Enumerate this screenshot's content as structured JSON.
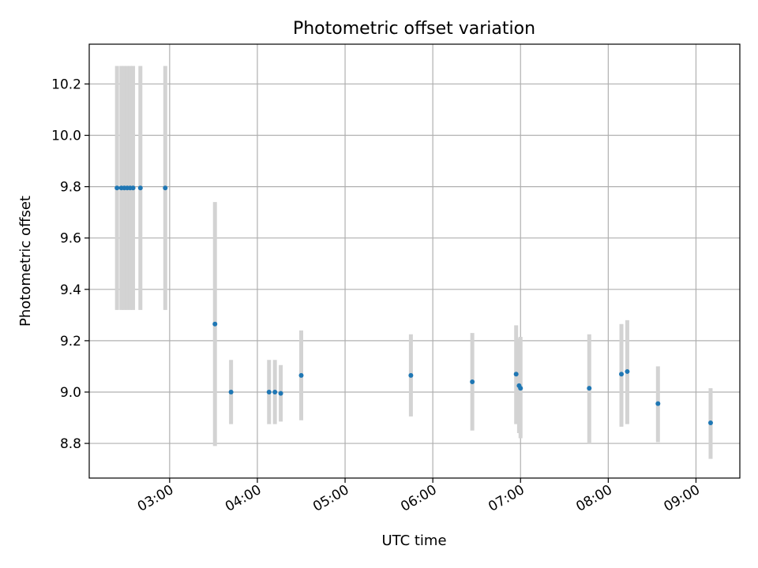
{
  "chart_data": {
    "type": "scatter",
    "title": "Photometric offset variation",
    "xlabel": "UTC time",
    "ylabel": "Photometric offset",
    "xlim": [
      "02:05",
      "09:30"
    ],
    "ylim": [
      8.665,
      10.355
    ],
    "grid": true,
    "x_tick_labels": [
      "03:00",
      "04:00",
      "05:00",
      "06:00",
      "07:00",
      "08:00",
      "09:00"
    ],
    "y_tick_labels": [
      "8.8",
      "9.0",
      "9.2",
      "9.4",
      "9.6",
      "9.8",
      "10.0",
      "10.2"
    ],
    "series": [
      {
        "color": "#1f77b4",
        "error_color": "#d3d3d3",
        "points": [
          {
            "x": "02:24",
            "y": 9.795,
            "ylow": 9.32,
            "yhigh": 10.27
          },
          {
            "x": "02:27",
            "y": 9.795,
            "ylow": 9.32,
            "yhigh": 10.27
          },
          {
            "x": "02:29",
            "y": 9.795,
            "ylow": 9.32,
            "yhigh": 10.27
          },
          {
            "x": "02:31",
            "y": 9.795,
            "ylow": 9.32,
            "yhigh": 10.27
          },
          {
            "x": "02:33",
            "y": 9.795,
            "ylow": 9.32,
            "yhigh": 10.27
          },
          {
            "x": "02:35",
            "y": 9.795,
            "ylow": 9.32,
            "yhigh": 10.27
          },
          {
            "x": "02:40",
            "y": 9.795,
            "ylow": 9.32,
            "yhigh": 10.27
          },
          {
            "x": "02:57",
            "y": 9.795,
            "ylow": 9.32,
            "yhigh": 10.27
          },
          {
            "x": "03:31",
            "y": 9.265,
            "ylow": 8.79,
            "yhigh": 9.74
          },
          {
            "x": "03:42",
            "y": 9.0,
            "ylow": 8.875,
            "yhigh": 9.125
          },
          {
            "x": "04:08",
            "y": 9.0,
            "ylow": 8.875,
            "yhigh": 9.125
          },
          {
            "x": "04:12",
            "y": 9.0,
            "ylow": 8.875,
            "yhigh": 9.125
          },
          {
            "x": "04:16",
            "y": 8.995,
            "ylow": 8.885,
            "yhigh": 9.105
          },
          {
            "x": "04:30",
            "y": 9.065,
            "ylow": 8.89,
            "yhigh": 9.24
          },
          {
            "x": "05:45",
            "y": 9.065,
            "ylow": 8.905,
            "yhigh": 9.225
          },
          {
            "x": "06:27",
            "y": 9.04,
            "ylow": 8.85,
            "yhigh": 9.23
          },
          {
            "x": "06:57",
            "y": 9.07,
            "ylow": 8.875,
            "yhigh": 9.26
          },
          {
            "x": "06:59",
            "y": 9.025,
            "ylow": 8.84,
            "yhigh": 9.21
          },
          {
            "x": "07:00",
            "y": 9.015,
            "ylow": 8.82,
            "yhigh": 9.215
          },
          {
            "x": "07:47",
            "y": 9.015,
            "ylow": 8.8,
            "yhigh": 9.225
          },
          {
            "x": "08:09",
            "y": 9.07,
            "ylow": 8.865,
            "yhigh": 9.265
          },
          {
            "x": "08:13",
            "y": 9.08,
            "ylow": 8.875,
            "yhigh": 9.28
          },
          {
            "x": "08:34",
            "y": 8.955,
            "ylow": 8.805,
            "yhigh": 9.1
          },
          {
            "x": "09:10",
            "y": 8.88,
            "ylow": 8.74,
            "yhigh": 9.015
          }
        ]
      }
    ]
  }
}
